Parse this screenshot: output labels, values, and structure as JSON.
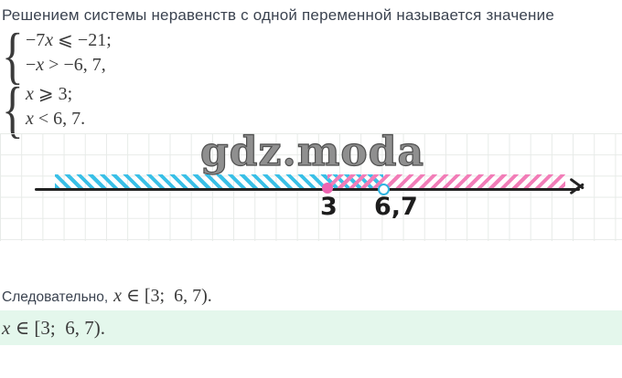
{
  "intro": {
    "text": "Решением системы неравенств с одной переменной называется значение"
  },
  "systems": [
    {
      "brace": "{",
      "lines": [
        [
          {
            "t": "−7",
            "s": "up"
          },
          {
            "t": "x",
            "s": "it"
          },
          {
            "t": " ⩽ −21;",
            "s": "up"
          }
        ],
        [
          {
            "t": "−",
            "s": "up"
          },
          {
            "t": "x",
            "s": "it"
          },
          {
            "t": " > −6, 7,",
            "s": "up"
          }
        ]
      ]
    },
    {
      "brace": "{",
      "lines": [
        [
          {
            "t": "x",
            "s": "it"
          },
          {
            "t": " ⩾ 3;",
            "s": "up"
          }
        ],
        [
          {
            "t": "x",
            "s": "it"
          },
          {
            "t": " < 6, 7.",
            "s": "up"
          }
        ]
      ]
    }
  ],
  "figure": {
    "watermark": "gdz.moda",
    "tick_labels": [
      "3",
      "6,7"
    ],
    "points": [
      {
        "value": "3",
        "style": "closed"
      },
      {
        "value": "6,7",
        "style": "open"
      }
    ],
    "colors": {
      "left_hatch": "#3ac0e7",
      "right_hatch": "#f27db8",
      "closed_point": "#ee64b1",
      "open_point_ring": "#2fb4e2",
      "axis": "#222222"
    }
  },
  "conclusion": {
    "prefix": "Следовательно,",
    "math": [
      {
        "t": "x",
        "s": "it"
      },
      {
        "t": " ∈ [3; 6, 7).",
        "s": "up"
      }
    ]
  },
  "answer": {
    "background": "#e4f7ec",
    "math": [
      {
        "t": "x",
        "s": "it"
      },
      {
        "t": " ∈ [3; 6, 7).",
        "s": "up"
      }
    ]
  }
}
